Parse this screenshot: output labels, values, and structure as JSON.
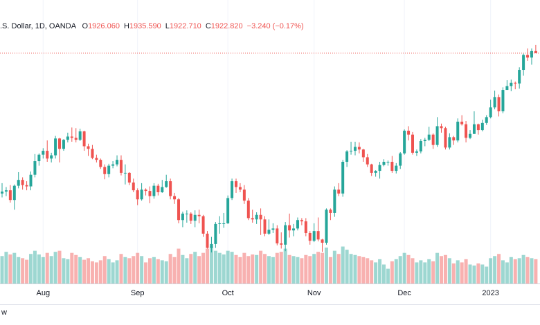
{
  "chart_data": {
    "type": "candlestick",
    "title": ".S. Dollar, 1D, OANDA",
    "legend": [
      {
        "key": "O",
        "value": "1926.060"
      },
      {
        "key": "H",
        "value": "1935.590"
      },
      {
        "key": "L",
        "value": "1922.710"
      },
      {
        "key": "C",
        "value": "1922.820"
      }
    ],
    "change": "−3.240 (−0.17%)",
    "logo_text": "w",
    "up_color": "#26a69a",
    "down_color": "#ef5350",
    "ylim": [
      1567,
      1975
    ],
    "y2lim": [
      0,
      500
    ],
    "categories": [
      null,
      null,
      null,
      null,
      null,
      null,
      null,
      null,
      null,
      null,
      "Aug",
      null,
      null,
      null,
      null,
      null,
      null,
      null,
      null,
      null,
      null,
      null,
      null,
      null,
      null,
      null,
      null,
      null,
      null,
      null,
      null,
      null,
      null,
      "Sep",
      null,
      null,
      null,
      null,
      null,
      null,
      null,
      null,
      null,
      null,
      null,
      null,
      null,
      null,
      null,
      null,
      null,
      null,
      null,
      null,
      null,
      "Oct",
      null,
      null,
      null,
      null,
      null,
      null,
      null,
      null,
      null,
      null,
      null,
      null,
      null,
      null,
      null,
      null,
      null,
      null,
      null,
      null,
      "Nov",
      null,
      null,
      null,
      null,
      null,
      null,
      null,
      null,
      null,
      null,
      null,
      null,
      null,
      null,
      null,
      null,
      null,
      null,
      null,
      null,
      null,
      "Dec",
      null,
      null,
      null,
      null,
      null,
      null,
      null,
      null,
      null,
      null,
      null,
      null,
      null,
      null,
      null,
      null,
      null,
      null,
      null,
      null,
      "2023",
      null,
      null,
      null,
      null,
      null,
      null,
      null,
      null,
      null,
      null,
      null
    ],
    "values": [
      [
        1706,
        1722,
        1700,
        1709
      ],
      [
        1709,
        1716,
        1702,
        1711
      ],
      [
        1711,
        1719,
        1692,
        1696
      ],
      [
        1696,
        1720,
        1681,
        1718
      ],
      [
        1718,
        1739,
        1714,
        1727
      ],
      [
        1727,
        1731,
        1712,
        1719
      ],
      [
        1719,
        1725,
        1711,
        1717
      ],
      [
        1717,
        1740,
        1711,
        1735
      ],
      [
        1735,
        1767,
        1731,
        1756
      ],
      [
        1756,
        1768,
        1749,
        1766
      ],
      [
        1766,
        1776,
        1760,
        1772
      ],
      [
        1772,
        1788,
        1755,
        1760
      ],
      [
        1760,
        1769,
        1754,
        1765
      ],
      [
        1765,
        1795,
        1760,
        1791
      ],
      [
        1791,
        1792,
        1754,
        1775
      ],
      [
        1775,
        1790,
        1772,
        1789
      ],
      [
        1789,
        1800,
        1785,
        1794
      ],
      [
        1794,
        1808,
        1786,
        1792
      ],
      [
        1792,
        1807,
        1785,
        1789
      ],
      [
        1789,
        1806,
        1787,
        1802
      ],
      [
        1802,
        1803,
        1772,
        1779
      ],
      [
        1779,
        1783,
        1764,
        1775
      ],
      [
        1775,
        1781,
        1759,
        1761
      ],
      [
        1761,
        1766,
        1754,
        1758
      ],
      [
        1758,
        1760,
        1744,
        1747
      ],
      [
        1747,
        1751,
        1728,
        1736
      ],
      [
        1736,
        1752,
        1731,
        1749
      ],
      [
        1749,
        1756,
        1745,
        1751
      ],
      [
        1751,
        1765,
        1748,
        1758
      ],
      [
        1758,
        1765,
        1734,
        1738
      ],
      [
        1738,
        1751,
        1720,
        1738
      ],
      [
        1738,
        1739,
        1719,
        1723
      ],
      [
        1723,
        1729,
        1708,
        1711
      ],
      [
        1711,
        1714,
        1688,
        1697
      ],
      [
        1697,
        1722,
        1695,
        1712
      ],
      [
        1712,
        1714,
        1703,
        1710
      ],
      [
        1710,
        1717,
        1691,
        1702
      ],
      [
        1702,
        1722,
        1698,
        1718
      ],
      [
        1718,
        1721,
        1703,
        1708
      ],
      [
        1708,
        1727,
        1707,
        1716
      ],
      [
        1716,
        1735,
        1715,
        1725
      ],
      [
        1725,
        1729,
        1697,
        1702
      ],
      [
        1702,
        1707,
        1690,
        1697
      ],
      [
        1697,
        1699,
        1660,
        1665
      ],
      [
        1665,
        1678,
        1654,
        1675
      ],
      [
        1675,
        1680,
        1661,
        1675
      ],
      [
        1675,
        1677,
        1659,
        1664
      ],
      [
        1664,
        1680,
        1654,
        1673
      ],
      [
        1673,
        1681,
        1660,
        1671
      ],
      [
        1671,
        1673,
        1639,
        1644
      ],
      [
        1644,
        1648,
        1621,
        1622
      ],
      [
        1622,
        1639,
        1615,
        1628
      ],
      [
        1628,
        1662,
        1622,
        1659
      ],
      [
        1659,
        1671,
        1644,
        1660
      ],
      [
        1660,
        1676,
        1653,
        1660
      ],
      [
        1660,
        1703,
        1659,
        1699
      ],
      [
        1699,
        1729,
        1696,
        1725
      ],
      [
        1725,
        1729,
        1707,
        1716
      ],
      [
        1716,
        1722,
        1708,
        1712
      ],
      [
        1712,
        1719,
        1690,
        1695
      ],
      [
        1695,
        1699,
        1665,
        1668
      ],
      [
        1668,
        1681,
        1661,
        1666
      ],
      [
        1666,
        1677,
        1659,
        1673
      ],
      [
        1673,
        1683,
        1642,
        1666
      ],
      [
        1666,
        1671,
        1640,
        1644
      ],
      [
        1644,
        1666,
        1642,
        1650
      ],
      [
        1650,
        1660,
        1645,
        1652
      ],
      [
        1652,
        1657,
        1626,
        1629
      ],
      [
        1629,
        1646,
        1621,
        1627
      ],
      [
        1627,
        1662,
        1617,
        1657
      ],
      [
        1657,
        1675,
        1638,
        1649
      ],
      [
        1649,
        1659,
        1640,
        1652
      ],
      [
        1652,
        1669,
        1649,
        1665
      ],
      [
        1665,
        1668,
        1657,
        1663
      ],
      [
        1663,
        1668,
        1640,
        1645
      ],
      [
        1645,
        1648,
        1627,
        1633
      ],
      [
        1633,
        1660,
        1631,
        1648
      ],
      [
        1648,
        1669,
        1632,
        1635
      ],
      [
        1635,
        1636,
        1616,
        1630
      ],
      [
        1630,
        1683,
        1627,
        1681
      ],
      [
        1681,
        1683,
        1665,
        1676
      ],
      [
        1676,
        1717,
        1670,
        1712
      ],
      [
        1712,
        1722,
        1702,
        1706
      ],
      [
        1706,
        1758,
        1701,
        1755
      ],
      [
        1755,
        1773,
        1747,
        1771
      ],
      [
        1771,
        1786,
        1766,
        1772
      ],
      [
        1772,
        1786,
        1765,
        1778
      ],
      [
        1778,
        1785,
        1768,
        1774
      ],
      [
        1774,
        1775,
        1755,
        1762
      ],
      [
        1762,
        1767,
        1747,
        1751
      ],
      [
        1751,
        1752,
        1733,
        1738
      ],
      [
        1738,
        1742,
        1732,
        1741
      ],
      [
        1741,
        1755,
        1729,
        1750
      ],
      [
        1750,
        1759,
        1748,
        1755
      ],
      [
        1755,
        1757,
        1749,
        1755
      ],
      [
        1755,
        1764,
        1738,
        1741
      ],
      [
        1741,
        1753,
        1737,
        1749
      ],
      [
        1749,
        1770,
        1744,
        1768
      ],
      [
        1768,
        1805,
        1766,
        1803
      ],
      [
        1803,
        1810,
        1788,
        1797
      ],
      [
        1797,
        1801,
        1766,
        1769
      ],
      [
        1769,
        1774,
        1764,
        1771
      ],
      [
        1771,
        1790,
        1768,
        1787
      ],
      [
        1787,
        1792,
        1779,
        1789
      ],
      [
        1789,
        1809,
        1787,
        1797
      ],
      [
        1797,
        1799,
        1775,
        1781
      ],
      [
        1781,
        1824,
        1778,
        1810
      ],
      [
        1810,
        1814,
        1800,
        1807
      ],
      [
        1807,
        1809,
        1774,
        1777
      ],
      [
        1777,
        1799,
        1774,
        1793
      ],
      [
        1793,
        1795,
        1781,
        1788
      ],
      [
        1788,
        1822,
        1785,
        1817
      ],
      [
        1817,
        1827,
        1811,
        1813
      ],
      [
        1813,
        1818,
        1785,
        1792
      ],
      [
        1792,
        1804,
        1790,
        1798
      ],
      [
        1798,
        1833,
        1798,
        1813
      ],
      [
        1813,
        1814,
        1797,
        1804
      ],
      [
        1804,
        1820,
        1802,
        1815
      ],
      [
        1815,
        1827,
        1812,
        1824
      ],
      [
        1824,
        1851,
        1822,
        1839
      ],
      [
        1839,
        1865,
        1836,
        1855
      ],
      [
        1855,
        1859,
        1825,
        1833
      ],
      [
        1833,
        1870,
        1830,
        1866
      ],
      [
        1866,
        1881,
        1866,
        1872
      ],
      [
        1872,
        1882,
        1864,
        1877
      ],
      [
        1877,
        1879,
        1867,
        1876
      ],
      [
        1876,
        1901,
        1868,
        1897
      ],
      [
        1897,
        1922,
        1888,
        1920
      ],
      [
        1920,
        1930,
        1911,
        1916
      ],
      [
        1916,
        1930,
        1905,
        1926
      ],
      [
        1926.06,
        1935.59,
        1922.71,
        1922.82
      ]
    ],
    "volume": [
      52,
      60,
      55,
      58,
      50,
      48,
      45,
      56,
      62,
      55,
      50,
      58,
      52,
      60,
      62,
      48,
      46,
      58,
      54,
      50,
      45,
      48,
      42,
      40,
      44,
      52,
      46,
      40,
      44,
      56,
      50,
      48,
      52,
      58,
      52,
      40,
      48,
      50,
      46,
      44,
      42,
      56,
      50,
      66,
      54,
      48,
      56,
      60,
      52,
      58,
      66,
      70,
      62,
      58,
      55,
      62,
      60,
      54,
      50,
      58,
      52,
      55,
      54,
      62,
      56,
      52,
      50,
      58,
      60,
      66,
      54,
      52,
      50,
      48,
      54,
      52,
      56,
      60,
      58,
      68,
      50,
      62,
      56,
      70,
      64,
      56,
      54,
      52,
      50,
      48,
      44,
      40,
      46,
      36,
      28,
      42,
      46,
      52,
      58,
      54,
      48,
      40,
      44,
      40,
      46,
      42,
      58,
      52,
      54,
      48,
      38,
      44,
      40,
      46,
      36,
      34,
      38,
      36,
      32,
      48,
      52,
      56,
      44,
      40,
      50,
      46,
      48,
      54,
      50,
      48,
      46
    ]
  }
}
